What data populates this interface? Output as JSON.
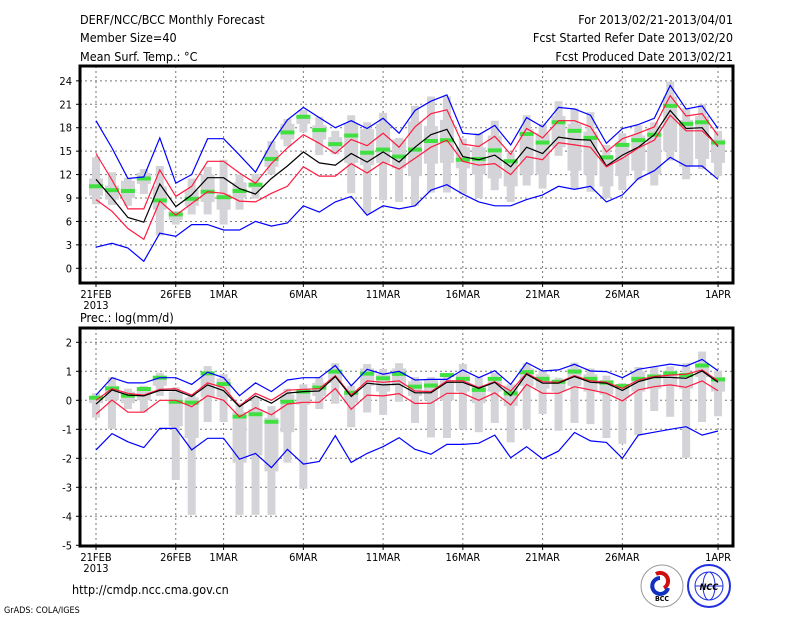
{
  "header": {
    "title": "DERF/NCC/BCC Monthly Forecast",
    "member_size": "Member Size=40",
    "variable_top": "Mean Surf. Temp.: °C",
    "period": "For 2013/02/21-2013/04/01",
    "started": "Fcst Started Refer Date 2013/02/20",
    "produced": "Fcst Produced Date 2013/02/21"
  },
  "footer": {
    "url": "http://cmdp.ncc.cma.gov.cn",
    "credit": "GrADS: COLA/IGES",
    "logo_bcc": "BCC",
    "logo_ncc": "NCC"
  },
  "colors": {
    "max_min": "#0000ff",
    "spread": "#ff1a40",
    "mean": "#000000",
    "green": "#40e040",
    "box": "#d4d4d8"
  },
  "chart_data": [
    {
      "type": "line",
      "title": "Mean Surf. Temp.: °C",
      "xlabel": "",
      "ylabel": "°C",
      "ylim": [
        -2,
        26
      ],
      "yticks": [
        "24",
        "21",
        "18",
        "15",
        "12",
        "9",
        "6",
        "3",
        "0"
      ],
      "ytick_values": [
        24,
        21,
        18,
        15,
        12,
        9,
        6,
        3,
        0
      ],
      "xticks": [
        "21FEB",
        "26FEB",
        "1MAR",
        "6MAR",
        "11MAR",
        "16MAR",
        "21MAR",
        "26MAR",
        "1APR"
      ],
      "xtick_days": [
        0,
        5,
        8,
        13,
        18,
        23,
        28,
        33,
        39
      ],
      "xyear": "2013",
      "grid": true,
      "series": [
        {
          "name": "max",
          "color": "#0000ff",
          "values": [
            18.9,
            15.4,
            11.5,
            11.7,
            16.7,
            10.9,
            12,
            16.6,
            16.6,
            14.5,
            12.3,
            16,
            19,
            20.6,
            19.3,
            18,
            18.9,
            17.9,
            19.2,
            17.3,
            20.2,
            21.4,
            22.2,
            17.3,
            17.1,
            18.3,
            15.8,
            19.3,
            18.1,
            20.6,
            20.4,
            19.6,
            16,
            17.9,
            18.4,
            19.2,
            23.4,
            20.4,
            20.8,
            17.9
          ]
        },
        {
          "name": "upper",
          "color": "#ff1a40",
          "values": [
            14.7,
            11.3,
            7.6,
            7.6,
            12.6,
            9.2,
            10.5,
            13.7,
            13.7,
            12.2,
            10.9,
            13.4,
            15.4,
            17.1,
            16,
            14.7,
            16.5,
            15.7,
            17.3,
            15.5,
            18.1,
            19.8,
            20.3,
            15.9,
            15.6,
            16.9,
            14.6,
            17.9,
            16.7,
            18.9,
            18.9,
            18.1,
            14.9,
            16.6,
            17.3,
            18.1,
            22.1,
            19.5,
            19.8,
            17
          ]
        },
        {
          "name": "mean",
          "color": "#000000",
          "values": [
            11.4,
            9,
            6.5,
            5.9,
            10.8,
            7.9,
            9.4,
            11.6,
            11.6,
            10.2,
            9.5,
            11.5,
            13.1,
            14.9,
            13.5,
            13.2,
            14.7,
            13.6,
            14.9,
            13.6,
            15.5,
            17.1,
            17.8,
            14.3,
            13.9,
            14.5,
            13,
            15.5,
            14.7,
            16.8,
            16.5,
            16.4,
            13.1,
            14.5,
            15.5,
            17.1,
            20.2,
            17.9,
            18,
            15.6
          ]
        },
        {
          "name": "lower",
          "color": "#ff1a40",
          "values": [
            8.8,
            7.3,
            5.1,
            3.7,
            8.6,
            6.8,
            8.3,
            9.8,
            9.6,
            8.6,
            8.5,
            9.6,
            10.5,
            13,
            11.8,
            11.8,
            13.4,
            12.2,
            13.6,
            12.7,
            14.1,
            15.5,
            16.4,
            13.7,
            13.2,
            13.4,
            12,
            14.3,
            13.9,
            16.1,
            15.8,
            15.5,
            13,
            14.1,
            15.4,
            16.4,
            19.6,
            17.6,
            17.6,
            15.7
          ]
        },
        {
          "name": "min",
          "color": "#0000ff",
          "values": [
            2.7,
            3.2,
            2.6,
            0.9,
            4.5,
            4.1,
            5.6,
            5.6,
            4.9,
            4.9,
            6,
            5.4,
            5.8,
            8,
            7.2,
            8.5,
            9.2,
            6.8,
            8,
            7.6,
            8,
            10,
            10.7,
            9.5,
            8.5,
            8,
            8,
            8.8,
            9.4,
            10.5,
            10.1,
            10.5,
            8.5,
            9.4,
            11.5,
            12.5,
            14.2,
            13.1,
            13.1,
            11.4
          ]
        },
        {
          "name": "green_marker",
          "color": "#40e040",
          "values": [
            10.5,
            10,
            9.9,
            11.5,
            8.7,
            6.9,
            8.9,
            9.8,
            9.1,
            9.9,
            10.7,
            14,
            17.4,
            19.4,
            17.7,
            15.9,
            17,
            14.8,
            15.2,
            14.3,
            15.2,
            16.3,
            16.4,
            13.9,
            14,
            15.1,
            13.7,
            17.2,
            16.1,
            18.7,
            17.6,
            16.7,
            14.2,
            15.8,
            16.4,
            17.1,
            20.8,
            18.5,
            18.7,
            16.1
          ]
        }
      ],
      "boxes": [
        [
          8.2,
          9.3,
          11.5,
          14.2
        ],
        [
          8.1,
          8.8,
          10.6,
          12.3
        ],
        [
          8,
          9,
          11.2,
          11.6
        ],
        [
          9.5,
          10.8,
          12.2,
          12.7
        ],
        [
          4.2,
          7.5,
          10.5,
          13.1
        ],
        [
          5.6,
          6.2,
          7.3,
          7.3
        ],
        [
          6.9,
          8,
          10,
          11.5
        ],
        [
          6.9,
          8.5,
          12,
          13
        ],
        [
          5.6,
          7.5,
          9.5,
          13.9
        ],
        [
          7.5,
          9,
          11,
          12
        ],
        [
          8.9,
          10.3,
          11,
          12.1
        ],
        [
          12,
          13,
          15,
          16.3
        ],
        [
          15.6,
          16.5,
          18.5,
          19.1
        ],
        [
          17.4,
          18.5,
          19.5,
          20.3
        ],
        [
          14.5,
          16.5,
          18.3,
          19.4
        ],
        [
          14.6,
          15.5,
          16.8,
          17.6
        ],
        [
          9.6,
          13.5,
          18.5,
          19.6
        ],
        [
          7,
          13.2,
          17.8,
          18.7
        ],
        [
          8.7,
          13.5,
          18.5,
          19.9
        ],
        [
          8.5,
          12.8,
          16.5,
          16.7
        ],
        [
          8,
          11.8,
          18.8,
          20.8
        ],
        [
          9.7,
          13.4,
          18.2,
          22
        ],
        [
          9.7,
          13.5,
          19,
          22
        ],
        [
          9.5,
          12.8,
          15.5,
          16.6
        ],
        [
          9,
          12,
          15.5,
          17.3
        ],
        [
          10,
          11.5,
          17,
          18.9
        ],
        [
          8.5,
          10.5,
          14,
          14.8
        ],
        [
          10.6,
          12,
          17.8,
          19.6
        ],
        [
          10.2,
          12,
          17.3,
          18.5
        ],
        [
          14.4,
          15.5,
          19.5,
          21.4
        ],
        [
          10.2,
          12.5,
          18.5,
          20.5
        ],
        [
          9.8,
          12,
          17.5,
          20
        ],
        [
          9,
          10.5,
          14.5,
          15.8
        ],
        [
          10,
          11.8,
          16,
          17.3
        ],
        [
          11.3,
          12.5,
          17,
          18.3
        ],
        [
          10.6,
          12,
          18,
          18.7
        ],
        [
          13.8,
          15,
          22,
          23.9
        ],
        [
          11.4,
          13,
          19,
          20.5
        ],
        [
          12.7,
          14,
          19.5,
          21
        ],
        [
          11.8,
          13.5,
          16.5,
          17.6
        ]
      ]
    },
    {
      "type": "line",
      "title": "Prec.: log(mm/d)",
      "xlabel": "",
      "ylabel": "log(mm/d)",
      "ylim": [
        -5,
        2.4
      ],
      "yticks": [
        "2",
        "1",
        "0",
        "-1",
        "-2",
        "-3",
        "-4",
        "-5"
      ],
      "ytick_values": [
        2,
        1,
        0,
        -1,
        -2,
        -3,
        -4,
        -5
      ],
      "xticks": [
        "21FEB",
        "26FEB",
        "1MAR",
        "6MAR",
        "11MAR",
        "16MAR",
        "21MAR",
        "26MAR",
        "1APR"
      ],
      "xtick_days": [
        0,
        5,
        8,
        13,
        18,
        23,
        28,
        33,
        39
      ],
      "xyear": "2013",
      "grid": true,
      "series": [
        {
          "name": "max",
          "color": "#0000ff",
          "values": [
            0.18,
            0.78,
            0.6,
            0.6,
            0.78,
            0.78,
            0.55,
            0.97,
            0.78,
            0.16,
            0.6,
            0.3,
            0.7,
            0.78,
            0.78,
            1.2,
            0.5,
            1.07,
            0.9,
            1,
            0.7,
            0.72,
            0.72,
            1.05,
            0.78,
            1.02,
            0.55,
            1.3,
            1.01,
            1.05,
            1.24,
            1.01,
            0.99,
            0.78,
            1.07,
            1.16,
            1.25,
            1.18,
            1.41,
            1.02
          ]
        },
        {
          "name": "upper",
          "color": "#ff1a40",
          "values": [
            0,
            0.4,
            0.24,
            0.18,
            0.38,
            0.4,
            0.18,
            0.6,
            0.44,
            -0.2,
            0.24,
            0,
            0.35,
            0.38,
            0.4,
            0.85,
            0.18,
            0.67,
            0.62,
            0.67,
            0.32,
            0.3,
            0.67,
            0.67,
            0.44,
            0.64,
            0.32,
            0.93,
            0.64,
            0.62,
            0.85,
            0.67,
            0.62,
            0.41,
            0.7,
            0.82,
            0.87,
            0.9,
            1.05,
            0.67
          ]
        },
        {
          "name": "mean",
          "color": "#000000",
          "values": [
            -0.13,
            0.36,
            0.18,
            0.15,
            0.34,
            0.34,
            0.13,
            0.53,
            0.33,
            -0.22,
            0.15,
            -0.1,
            0.25,
            0.3,
            0.32,
            0.82,
            0.13,
            0.59,
            0.53,
            0.56,
            0.26,
            0.26,
            0.62,
            0.62,
            0.41,
            0.62,
            0.16,
            0.9,
            0.59,
            0.59,
            0.82,
            0.62,
            0.59,
            0.34,
            0.64,
            0.79,
            0.79,
            0.76,
            1.01,
            0.62
          ]
        },
        {
          "name": "lower",
          "color": "#ff1a40",
          "values": [
            -0.48,
            0.01,
            -0.41,
            -0.41,
            0,
            0,
            -0.22,
            0.16,
            0,
            -0.57,
            -0.25,
            -0.5,
            -0.13,
            -0.07,
            -0.07,
            0.41,
            -0.31,
            0.18,
            0.15,
            0.23,
            -0.11,
            -0.1,
            0.24,
            0.24,
            0,
            0.26,
            -0.16,
            0.55,
            0.24,
            0.24,
            0.47,
            0.36,
            0.24,
            -0.02,
            0.36,
            0.47,
            0.53,
            0.45,
            0.67,
            0.33
          ]
        },
        {
          "name": "min",
          "color": "#0000ff",
          "values": [
            -1.71,
            -1.15,
            -1.43,
            -1.63,
            -0.97,
            -0.97,
            -1.71,
            -1.31,
            -1.31,
            -2.03,
            -1.83,
            -2.32,
            -1.69,
            -2.2,
            -2.11,
            -1.22,
            -2.14,
            -1.83,
            -1.6,
            -1.29,
            -1.69,
            -1.86,
            -1.52,
            -1.52,
            -1.48,
            -1.2,
            -1.98,
            -1.6,
            -2.02,
            -1.75,
            -1.11,
            -1.4,
            -1.45,
            -2,
            -1.2,
            -1.1,
            -1,
            -0.91,
            -1.2,
            -1.06
          ]
        },
        {
          "name": "green_marker",
          "color": "#40e040",
          "values": [
            0.09,
            0.41,
            0.16,
            0.39,
            0.78,
            -0.05,
            -0.08,
            0.93,
            0.56,
            -0.56,
            -0.48,
            -0.74,
            -0.05,
            0.3,
            0.44,
            0.99,
            0.26,
            0.92,
            0.76,
            0.91,
            0.47,
            0.51,
            0.87,
            0.74,
            0.36,
            0.74,
            0.24,
            0.97,
            0.74,
            0.64,
            0.99,
            0.74,
            0.61,
            0.49,
            0.74,
            0.82,
            0.93,
            0.87,
            1.2,
            0.72
          ]
        }
      ],
      "boxes": [
        [
          -0.6,
          -0.1,
          0.1,
          0.25
        ],
        [
          -0.98,
          0,
          0.5,
          0.8
        ],
        [
          -0.3,
          -0.1,
          0.3,
          0.4
        ],
        [
          -0.42,
          0,
          0.45,
          0.5
        ],
        [
          0.15,
          0.5,
          0.8,
          0.95
        ],
        [
          -2.75,
          -0.9,
          0.3,
          0.45
        ],
        [
          -3.95,
          -1.3,
          0.1,
          0.2
        ],
        [
          -0.75,
          0.1,
          0.9,
          1.18
        ],
        [
          -0.75,
          0.1,
          0.75,
          0.9
        ],
        [
          -3.95,
          -2.15,
          -0.4,
          -0.1
        ],
        [
          -3.95,
          -1.9,
          -0.3,
          0.1
        ],
        [
          -3.95,
          -2.45,
          -0.6,
          -0.2
        ],
        [
          -2.15,
          -1.1,
          0.2,
          0.4
        ],
        [
          -3.05,
          -0.15,
          0.3,
          0.55
        ],
        [
          -0.3,
          0.15,
          0.6,
          0.8
        ],
        [
          -0.12,
          0.6,
          1.05,
          1.28
        ],
        [
          -0.93,
          -0.1,
          0.35,
          0.5
        ],
        [
          -0.42,
          0.5,
          1.1,
          1.25
        ],
        [
          -0.5,
          0.3,
          0.9,
          1.08
        ],
        [
          -0.05,
          0.5,
          1.1,
          1.28
        ],
        [
          -0.78,
          0.15,
          0.65,
          0.8
        ],
        [
          -1.28,
          0,
          0.7,
          0.8
        ],
        [
          -1.3,
          0,
          0.7,
          0.82
        ],
        [
          -1,
          0.3,
          0.9,
          1.25
        ],
        [
          -1.1,
          -0.1,
          0.5,
          0.8
        ],
        [
          -0.78,
          0.3,
          0.8,
          0.95
        ],
        [
          -1.45,
          -0.2,
          0.5,
          0.55
        ],
        [
          -1,
          0.5,
          1.1,
          1.28
        ],
        [
          -0.47,
          0.4,
          0.9,
          1.03
        ],
        [
          -1.05,
          0.3,
          0.7,
          0.78
        ],
        [
          -0.78,
          0.5,
          1.1,
          1.3
        ],
        [
          -0.82,
          0.3,
          0.9,
          1.1
        ],
        [
          -1.3,
          0.2,
          0.7,
          0.85
        ],
        [
          -1.5,
          0.1,
          0.5,
          0.6
        ],
        [
          -1.2,
          0.3,
          1,
          1.15
        ],
        [
          -0.37,
          0.4,
          0.9,
          1.15
        ],
        [
          -0.57,
          0.5,
          1,
          1.17
        ],
        [
          -1.98,
          0.4,
          0.9,
          1.28
        ],
        [
          -0.75,
          0.8,
          1.2,
          1.68
        ],
        [
          -0.55,
          0.3,
          0.8,
          1.02
        ]
      ]
    }
  ]
}
